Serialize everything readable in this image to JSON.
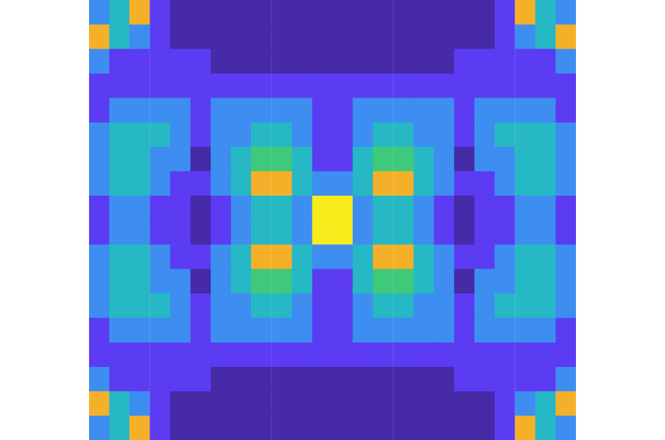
{
  "chart_data": {
    "type": "heatmap",
    "tick_labels": false,
    "grid": false,
    "colors": [
      "#472aa8",
      "#5b3cf2",
      "#3d8ef0",
      "#27b8c6",
      "#3fc97a",
      "#f5b02a",
      "#f8ec1c"
    ],
    "cells": [
      [
        2,
        3,
        5,
        1,
        0,
        0,
        0,
        0,
        0,
        0,
        0,
        0,
        0,
        0,
        0,
        0,
        0,
        0,
        0,
        0,
        1,
        5,
        3,
        2
      ],
      [
        5,
        3,
        2,
        1,
        0,
        0,
        0,
        0,
        0,
        0,
        0,
        0,
        0,
        0,
        0,
        0,
        0,
        0,
        0,
        0,
        1,
        2,
        3,
        5
      ],
      [
        2,
        1,
        1,
        1,
        1,
        1,
        0,
        0,
        0,
        0,
        0,
        0,
        0,
        0,
        0,
        0,
        0,
        0,
        1,
        1,
        1,
        1,
        1,
        2
      ],
      [
        1,
        1,
        1,
        1,
        1,
        1,
        1,
        1,
        1,
        1,
        1,
        1,
        1,
        1,
        1,
        1,
        1,
        1,
        1,
        1,
        1,
        1,
        1,
        1
      ],
      [
        1,
        2,
        2,
        2,
        2,
        1,
        2,
        2,
        2,
        2,
        2,
        1,
        1,
        2,
        2,
        2,
        2,
        2,
        1,
        2,
        2,
        2,
        2,
        1
      ],
      [
        2,
        3,
        3,
        3,
        2,
        1,
        2,
        2,
        3,
        3,
        2,
        1,
        1,
        2,
        3,
        3,
        2,
        2,
        1,
        2,
        3,
        3,
        3,
        2
      ],
      [
        2,
        3,
        3,
        2,
        2,
        0,
        2,
        3,
        4,
        4,
        3,
        1,
        1,
        3,
        4,
        4,
        3,
        2,
        0,
        2,
        2,
        3,
        3,
        2
      ],
      [
        2,
        3,
        3,
        2,
        1,
        1,
        2,
        3,
        5,
        5,
        3,
        2,
        2,
        3,
        5,
        5,
        3,
        2,
        1,
        1,
        2,
        3,
        3,
        2
      ],
      [
        1,
        2,
        2,
        1,
        1,
        0,
        1,
        2,
        3,
        3,
        2,
        6,
        6,
        2,
        3,
        3,
        2,
        1,
        0,
        1,
        1,
        2,
        2,
        1
      ],
      [
        1,
        2,
        2,
        1,
        1,
        0,
        1,
        2,
        3,
        3,
        2,
        6,
        6,
        2,
        3,
        3,
        2,
        1,
        0,
        1,
        1,
        2,
        2,
        1
      ],
      [
        2,
        3,
        3,
        2,
        1,
        1,
        2,
        3,
        5,
        5,
        3,
        2,
        2,
        3,
        5,
        5,
        3,
        2,
        1,
        1,
        2,
        3,
        3,
        2
      ],
      [
        2,
        3,
        3,
        2,
        2,
        0,
        2,
        3,
        4,
        4,
        3,
        1,
        1,
        3,
        4,
        4,
        3,
        2,
        0,
        2,
        2,
        3,
        3,
        2
      ],
      [
        2,
        3,
        3,
        3,
        2,
        1,
        2,
        2,
        3,
        3,
        2,
        1,
        1,
        2,
        3,
        3,
        2,
        2,
        1,
        2,
        3,
        3,
        3,
        2
      ],
      [
        1,
        2,
        2,
        2,
        2,
        1,
        2,
        2,
        2,
        2,
        2,
        1,
        1,
        2,
        2,
        2,
        2,
        2,
        1,
        2,
        2,
        2,
        2,
        1
      ],
      [
        1,
        1,
        1,
        1,
        1,
        1,
        1,
        1,
        1,
        1,
        1,
        1,
        1,
        1,
        1,
        1,
        1,
        1,
        1,
        1,
        1,
        1,
        1,
        1
      ],
      [
        2,
        1,
        1,
        1,
        1,
        1,
        0,
        0,
        0,
        0,
        0,
        0,
        0,
        0,
        0,
        0,
        0,
        0,
        1,
        1,
        1,
        1,
        1,
        2
      ],
      [
        5,
        3,
        2,
        1,
        0,
        0,
        0,
        0,
        0,
        0,
        0,
        0,
        0,
        0,
        0,
        0,
        0,
        0,
        0,
        0,
        1,
        2,
        3,
        5
      ],
      [
        2,
        3,
        5,
        1,
        0,
        0,
        0,
        0,
        0,
        0,
        0,
        0,
        0,
        0,
        0,
        0,
        0,
        0,
        0,
        0,
        1,
        5,
        3,
        2
      ]
    ]
  }
}
